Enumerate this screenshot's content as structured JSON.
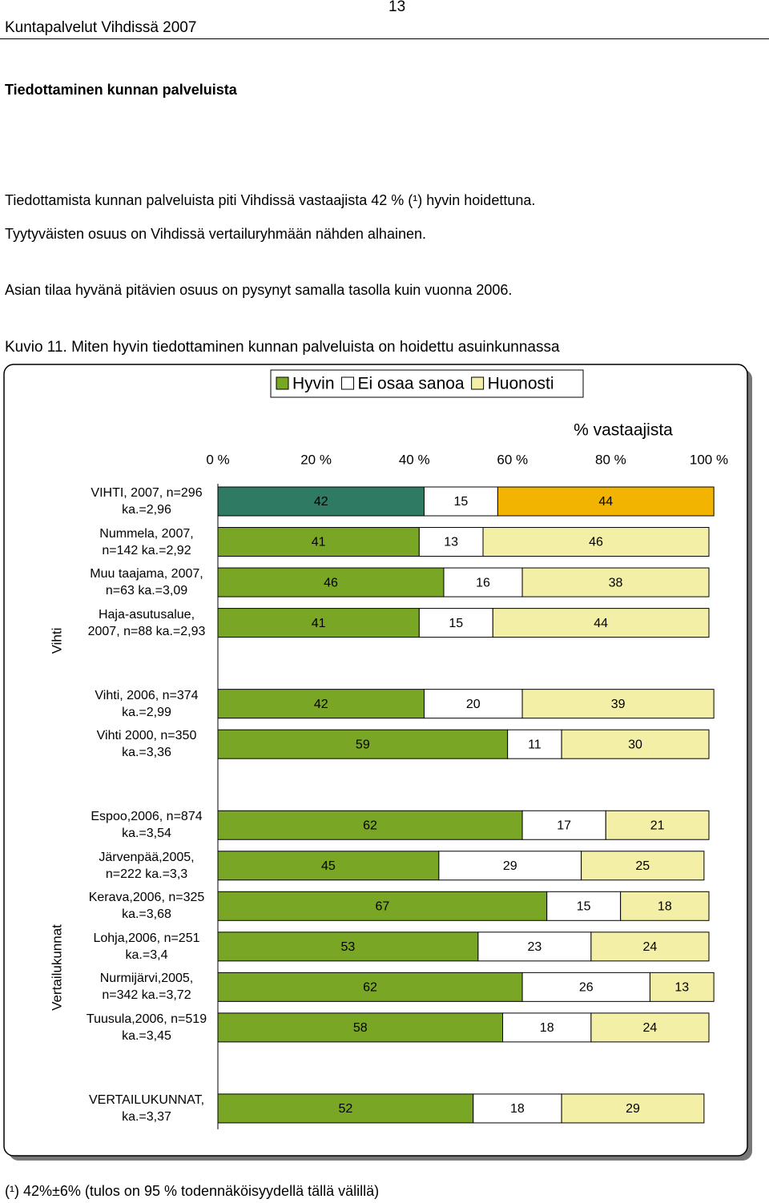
{
  "header": {
    "title": "Kuntapalvelut Vihdissä 2007",
    "page": 13
  },
  "section_title": "Tiedottaminen kunnan palveluista",
  "paragraphs": [
    "Tiedottamista kunnan palveluista piti Vihdissä vastaajista 42 % (¹) hyvin hoidettuna.",
    "Tyytyväisten osuus on Vihdissä vertailuryhmään nähden alhainen.",
    "Asian tilaa hyvänä pitävien osuus on pysynyt samalla tasolla kuin vuonna 2006."
  ],
  "figure_caption": "Kuvio 11. Miten hyvin tiedottaminen kunnan palveluista on hoidettu asuinkunnassa",
  "footnote": "(¹) 42%±6% (tulos on 95 % todennäköisyydellä tällä välillä)",
  "chart_data": {
    "type": "stacked-bar-horizontal",
    "xlabel": "% vastaajista",
    "xlim": [
      0,
      100
    ],
    "xticks": [
      {
        "value": 0,
        "label": "0 %"
      },
      {
        "value": 20,
        "label": "20 %"
      },
      {
        "value": 40,
        "label": "40 %"
      },
      {
        "value": 60,
        "label": "60 %"
      },
      {
        "value": 80,
        "label": "80 %"
      },
      {
        "value": 100,
        "label": "100 %"
      }
    ],
    "legend": "top",
    "group_labels": [
      "Vihti",
      "Vertailukunnat"
    ],
    "highlight_index": 0,
    "categories": [
      "VIHTI, 2007, n=296\nka.=2,96",
      "Nummela, 2007,\nn=142 ka.=2,92",
      "Muu taajama, 2007,\nn=63 ka.=3,09",
      "Haja-asutusalue,\n2007, n=88 ka.=2,93",
      null,
      "Vihti, 2006, n=374\nka.=2,99",
      "Vihti 2000, n=350\nka.=3,36",
      null,
      "Espoo,2006, n=874\nka.=3,54",
      "Järvenpää,2005,\nn=222 ka.=3,3",
      "Kerava,2006, n=325\nka.=3,68",
      "Lohja,2006, n=251\nka.=3,4",
      "Nurmijärvi,2005,\nn=342 ka.=3,72",
      "Tuusula,2006, n=519\nka.=3,45",
      null,
      "VERTAILUKUNNAT,\nka.=3,37"
    ],
    "series": [
      {
        "name": "Hyvin",
        "color": "#7aa626",
        "highlight_color": "#2e7a62",
        "values": [
          42,
          41,
          46,
          41,
          null,
          42,
          59,
          null,
          62,
          45,
          67,
          53,
          62,
          58,
          null,
          52
        ]
      },
      {
        "name": "Ei osaa sanoa",
        "color": "#ffffff",
        "highlight_color": "#ffffff",
        "values": [
          15,
          13,
          16,
          15,
          null,
          20,
          11,
          null,
          17,
          29,
          15,
          23,
          26,
          18,
          null,
          18
        ]
      },
      {
        "name": "Huonosti",
        "color": "#f3efa6",
        "highlight_color": "#f2b400",
        "values": [
          44,
          46,
          38,
          44,
          null,
          39,
          30,
          null,
          21,
          25,
          18,
          24,
          13,
          24,
          null,
          29
        ]
      }
    ]
  }
}
